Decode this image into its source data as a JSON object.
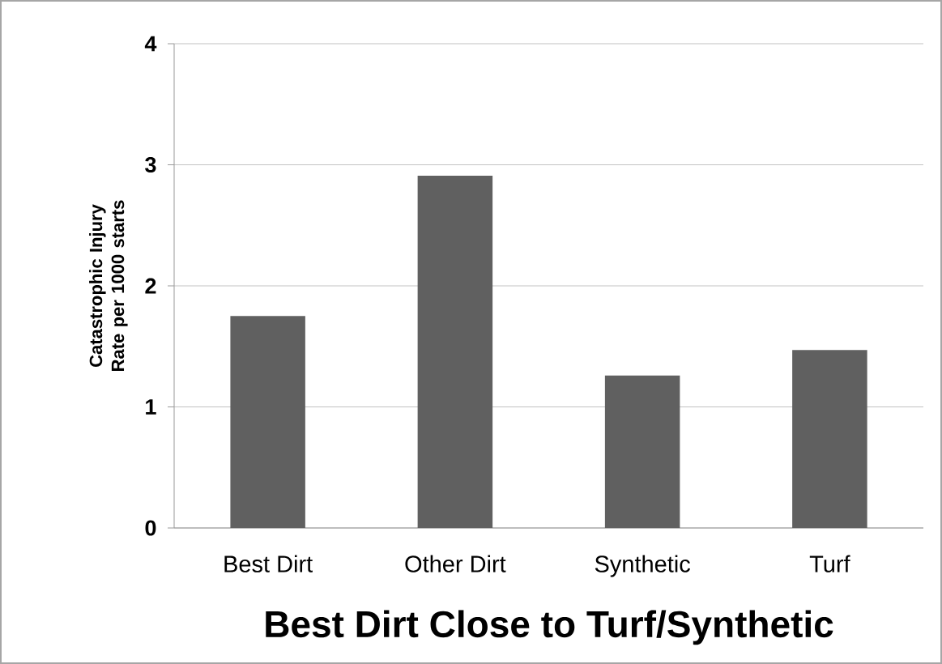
{
  "chart_data": {
    "type": "bar",
    "categories": [
      "Best Dirt",
      "Other Dirt",
      "Synthetic",
      "Turf"
    ],
    "values": [
      1.75,
      2.91,
      1.26,
      1.47
    ],
    "color": "#606060",
    "ylabel": "Catastrophic Injury Rate per 1000 starts",
    "xlabel": "Best Dirt Close to Turf/Synthetic",
    "ylim": [
      0,
      4
    ],
    "yticks": [
      0,
      1,
      2,
      3,
      4
    ],
    "grid": "y"
  }
}
